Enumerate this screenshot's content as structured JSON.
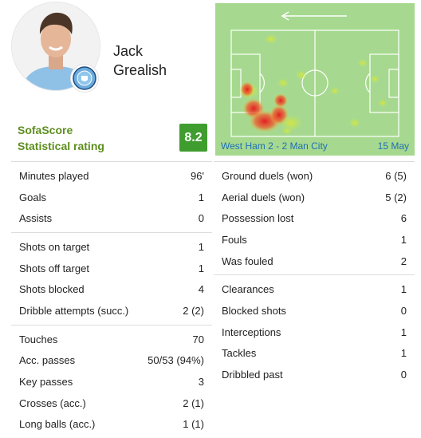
{
  "player": {
    "first_name": "Jack",
    "last_name": "Grealish"
  },
  "rating": {
    "label_line1": "SofaScore",
    "label_line2": "Statistical rating",
    "value": "8.2",
    "color": "#3f9d2f"
  },
  "heatmap": {
    "match": "West Ham 2 - 2 Man City",
    "date": "15 May",
    "direction_icon": "arrow-left-icon"
  },
  "left_groups": [
    [
      {
        "label": "Minutes played",
        "value": "96'"
      },
      {
        "label": "Goals",
        "value": "1"
      },
      {
        "label": "Assists",
        "value": "0"
      }
    ],
    [
      {
        "label": "Shots on target",
        "value": "1"
      },
      {
        "label": "Shots off target",
        "value": "1"
      },
      {
        "label": "Shots blocked",
        "value": "4"
      },
      {
        "label": "Dribble attempts (succ.)",
        "value": "2 (2)"
      }
    ],
    [
      {
        "label": "Touches",
        "value": "70"
      },
      {
        "label": "Acc. passes",
        "value": "50/53 (94%)"
      },
      {
        "label": "Key passes",
        "value": "3"
      },
      {
        "label": "Crosses (acc.)",
        "value": "2 (1)"
      },
      {
        "label": "Long balls (acc.)",
        "value": "1 (1)"
      }
    ]
  ],
  "right_groups": [
    [
      {
        "label": "Ground duels (won)",
        "value": "6 (5)"
      },
      {
        "label": "Aerial duels (won)",
        "value": "5 (2)"
      },
      {
        "label": "Possession lost",
        "value": "6"
      },
      {
        "label": "Fouls",
        "value": "1"
      },
      {
        "label": "Was fouled",
        "value": "2"
      }
    ],
    [
      {
        "label": "Clearances",
        "value": "1"
      },
      {
        "label": "Blocked shots",
        "value": "0"
      },
      {
        "label": "Interceptions",
        "value": "1"
      },
      {
        "label": "Tackles",
        "value": "1"
      },
      {
        "label": "Dribbled past",
        "value": "0"
      }
    ]
  ]
}
